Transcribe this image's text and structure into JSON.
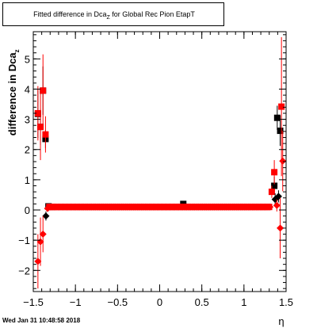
{
  "title_main": "Fitted difference in Dca",
  "title_sub": "Z",
  "title_rest": " for Global Rec Pion EtapT",
  "ylabel_main": "difference in Dca",
  "ylabel_sub": "z",
  "xlabel": "η",
  "footer": "Wed Jan 31 10:48:58 2018",
  "colors": {
    "black": "#000000",
    "red": "#ff0000"
  },
  "chart_data": {
    "type": "scatter",
    "title": "Fitted difference in DcaZ for Global Rec Pion EtapT",
    "xlabel": "η",
    "ylabel": "difference in Dcaz",
    "xlim": [
      -1.5,
      1.5
    ],
    "ylim": [
      -2.7,
      5.9
    ],
    "xticks": [
      -1.5,
      -1,
      -0.5,
      0,
      0.5,
      1,
      1.5
    ],
    "xticklabels": [
      "−1.5",
      "−1",
      "−0.5",
      "0",
      "0.5",
      "1",
      "1.5"
    ],
    "yticks": [
      -2,
      -1,
      0,
      1,
      2,
      3,
      4,
      5
    ],
    "yticklabels": [
      "−2",
      "−1",
      "0",
      "1",
      "2",
      "3",
      "4",
      "5"
    ],
    "grid": false,
    "series": [
      {
        "marker": "square",
        "color": "#000000",
        "points": [
          {
            "x": -1.445,
            "y": 3.18,
            "err": 0.8
          },
          {
            "x": -1.415,
            "y": 2.75,
            "err": 0.6
          },
          {
            "x": -1.385,
            "y": 3.95,
            "err": 0.8
          },
          {
            "x": -1.355,
            "y": 2.35,
            "err": 0.3
          },
          {
            "x": -1.32,
            "y": 0.12,
            "err": 0.05
          },
          {
            "x": -1.28,
            "y": 0.1,
            "err": 0.04
          },
          {
            "x": 0.28,
            "y": 0.2,
            "err": 0.03
          },
          {
            "x": 1.36,
            "y": 0.8,
            "err": 0.3
          },
          {
            "x": 1.395,
            "y": 3.05,
            "err": 0.4
          },
          {
            "x": 1.43,
            "y": 2.62,
            "err": 0.5
          }
        ]
      },
      {
        "marker": "square",
        "color": "#ff0000",
        "points": [
          {
            "x": -1.445,
            "y": 3.2,
            "err": 0.9
          },
          {
            "x": -1.415,
            "y": 2.75,
            "err": 1.1
          },
          {
            "x": -1.385,
            "y": 3.95,
            "err": 1.2
          },
          {
            "x": -1.355,
            "y": 2.5,
            "err": 0.6
          },
          {
            "x": 1.33,
            "y": 0.6,
            "err": 0.2
          },
          {
            "x": 1.36,
            "y": 1.25,
            "err": 0.4
          },
          {
            "x": 1.445,
            "y": 3.42,
            "err": 2.3
          }
        ]
      },
      {
        "marker": "diamond",
        "color": "#000000",
        "points": [
          {
            "x": -1.35,
            "y": -0.2,
            "err": 0.15
          },
          {
            "x": 1.37,
            "y": 0.35,
            "err": 0.2
          },
          {
            "x": 1.41,
            "y": 0.45,
            "err": 0.2
          }
        ]
      },
      {
        "marker": "diamond",
        "color": "#ff0000",
        "points": [
          {
            "x": -1.445,
            "y": -1.7,
            "err": 0.9
          },
          {
            "x": -1.415,
            "y": -1.05,
            "err": 0.8
          },
          {
            "x": -1.385,
            "y": -0.8,
            "err": 0.6
          },
          {
            "x": -1.33,
            "y": 0.05,
            "err": 0.1
          },
          {
            "x": 1.39,
            "y": 0.15,
            "err": 0.2
          },
          {
            "x": 1.43,
            "y": -0.6,
            "err": 1.0
          },
          {
            "x": 1.46,
            "y": 1.62,
            "err": 1.0
          }
        ]
      },
      {
        "marker": "square",
        "color": "#ff0000",
        "band": true,
        "x_start": -1.31,
        "x_end": 1.31,
        "step": 0.0235,
        "y": 0.1,
        "err": 0.05
      },
      {
        "marker": "diamond",
        "color": "#ff0000",
        "band": true,
        "x_start": -1.3,
        "x_end": 1.31,
        "step": 0.0235,
        "y": 0.1,
        "err": 0.05
      }
    ]
  }
}
